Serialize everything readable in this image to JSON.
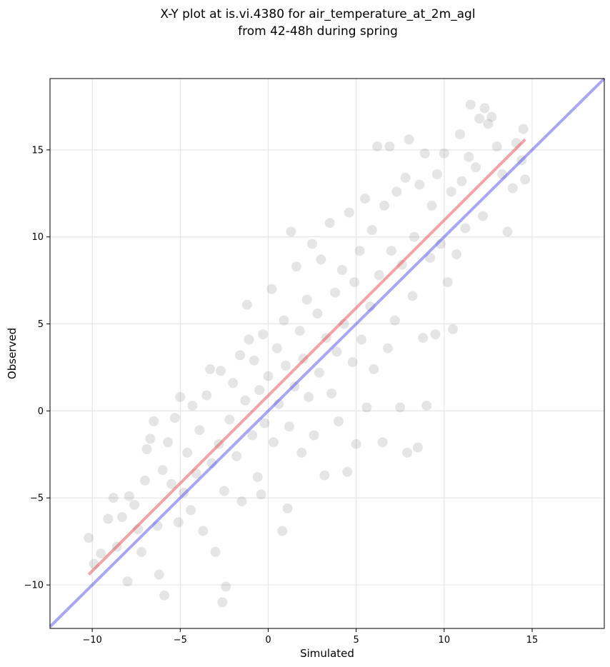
{
  "chart_data": {
    "type": "scatter",
    "title": [
      "X-Y plot at is.vi.4380 for air_temperature_at_2m_agl",
      "from 42-48h during spring"
    ],
    "xlabel": "Simulated",
    "ylabel": "Observed",
    "xlim": [
      -12.4,
      19.1
    ],
    "ylim": [
      -12.5,
      19.1
    ],
    "xticks": [
      -10,
      -5,
      0,
      5,
      10,
      15
    ],
    "yticks": [
      -10,
      -5,
      0,
      5,
      10,
      15
    ],
    "xtick_labels": [
      "−10",
      "−5",
      "0",
      "5",
      "10",
      "15"
    ],
    "ytick_labels": [
      "−10",
      "−5",
      "0",
      "5",
      "10",
      "15"
    ],
    "grid": true,
    "colors": {
      "points": "#000000",
      "fit_line": "#e8474e",
      "identity_line": "#3b3be8"
    },
    "identity_line": {
      "x": [
        -12.4,
        19.1
      ],
      "y": [
        -12.4,
        19.1
      ]
    },
    "fit_line": {
      "x": [
        -10.2,
        14.6
      ],
      "y": [
        -9.4,
        15.6
      ]
    },
    "point_generation_note_removed": true,
    "points": [
      [
        -10.2,
        -7.3
      ],
      [
        -9.9,
        -8.8
      ],
      [
        -9.5,
        -8.2
      ],
      [
        -9.1,
        -6.2
      ],
      [
        -8.8,
        -5.0
      ],
      [
        -8.6,
        -7.8
      ],
      [
        -8.3,
        -6.1
      ],
      [
        -8.0,
        -9.8
      ],
      [
        -7.9,
        -4.9
      ],
      [
        -7.6,
        -5.4
      ],
      [
        -7.4,
        -6.8
      ],
      [
        -7.2,
        -8.1
      ],
      [
        -7.0,
        -4.0
      ],
      [
        -6.9,
        -2.2
      ],
      [
        -6.7,
        -1.6
      ],
      [
        -6.5,
        -0.6
      ],
      [
        -6.3,
        -6.6
      ],
      [
        -6.2,
        -9.4
      ],
      [
        -6.0,
        -3.4
      ],
      [
        -5.9,
        -10.6
      ],
      [
        -5.7,
        -1.8
      ],
      [
        -5.5,
        -4.2
      ],
      [
        -5.3,
        -0.4
      ],
      [
        -5.1,
        -6.4
      ],
      [
        -5.0,
        0.8
      ],
      [
        -4.8,
        -4.7
      ],
      [
        -4.6,
        -2.4
      ],
      [
        -4.4,
        -5.7
      ],
      [
        -4.3,
        0.3
      ],
      [
        -4.1,
        -3.6
      ],
      [
        -3.9,
        -1.1
      ],
      [
        -3.7,
        -6.9
      ],
      [
        -3.5,
        0.9
      ],
      [
        -3.3,
        2.4
      ],
      [
        -3.2,
        -3.0
      ],
      [
        -3.0,
        -8.1
      ],
      [
        -2.8,
        -1.9
      ],
      [
        -2.7,
        2.3
      ],
      [
        -2.5,
        -4.6
      ],
      [
        -2.4,
        -10.1
      ],
      [
        -2.6,
        -11.0
      ],
      [
        -2.2,
        -0.5
      ],
      [
        -2.0,
        1.6
      ],
      [
        -1.8,
        -2.6
      ],
      [
        -1.6,
        3.2
      ],
      [
        -1.5,
        -5.2
      ],
      [
        -1.3,
        0.6
      ],
      [
        -1.1,
        4.1
      ],
      [
        -0.9,
        -1.4
      ],
      [
        -0.8,
        2.9
      ],
      [
        -1.2,
        6.1
      ],
      [
        -0.6,
        -3.8
      ],
      [
        -0.5,
        1.2
      ],
      [
        -0.3,
        4.4
      ],
      [
        -0.2,
        -0.7
      ],
      [
        0.0,
        2.0
      ],
      [
        0.2,
        7.0
      ],
      [
        0.3,
        -1.8
      ],
      [
        0.5,
        3.6
      ],
      [
        0.6,
        0.4
      ],
      [
        0.8,
        -6.9
      ],
      [
        0.9,
        5.2
      ],
      [
        1.0,
        2.6
      ],
      [
        1.2,
        -0.9
      ],
      [
        1.3,
        10.3
      ],
      [
        1.5,
        1.4
      ],
      [
        1.6,
        8.3
      ],
      [
        1.8,
        4.6
      ],
      [
        1.9,
        -2.4
      ],
      [
        2.0,
        3.0
      ],
      [
        2.2,
        6.4
      ],
      [
        2.3,
        0.8
      ],
      [
        2.5,
        9.6
      ],
      [
        2.6,
        -1.4
      ],
      [
        2.8,
        5.6
      ],
      [
        2.9,
        2.2
      ],
      [
        3.0,
        8.7
      ],
      [
        3.2,
        -3.7
      ],
      [
        3.3,
        4.2
      ],
      [
        3.5,
        10.8
      ],
      [
        3.6,
        1.0
      ],
      [
        3.8,
        6.8
      ],
      [
        3.9,
        3.4
      ],
      [
        4.0,
        -0.6
      ],
      [
        4.2,
        8.1
      ],
      [
        4.3,
        5.0
      ],
      [
        4.5,
        -3.5
      ],
      [
        4.6,
        11.4
      ],
      [
        4.8,
        2.8
      ],
      [
        4.9,
        7.4
      ],
      [
        5.0,
        -1.9
      ],
      [
        5.2,
        9.2
      ],
      [
        5.3,
        4.1
      ],
      [
        5.5,
        12.2
      ],
      [
        5.6,
        0.2
      ],
      [
        5.8,
        6.0
      ],
      [
        5.9,
        10.4
      ],
      [
        6.0,
        2.4
      ],
      [
        6.2,
        15.2
      ],
      [
        6.3,
        7.8
      ],
      [
        6.5,
        -1.8
      ],
      [
        6.6,
        11.8
      ],
      [
        6.8,
        3.6
      ],
      [
        6.9,
        15.2
      ],
      [
        7.0,
        9.2
      ],
      [
        7.2,
        5.2
      ],
      [
        7.3,
        12.6
      ],
      [
        7.5,
        0.2
      ],
      [
        7.6,
        8.4
      ],
      [
        7.8,
        13.4
      ],
      [
        7.9,
        -2.4
      ],
      [
        8.0,
        15.6
      ],
      [
        8.2,
        6.6
      ],
      [
        8.3,
        10.0
      ],
      [
        8.5,
        -2.1
      ],
      [
        8.6,
        13.0
      ],
      [
        8.8,
        4.2
      ],
      [
        8.9,
        14.8
      ],
      [
        9.0,
        0.3
      ],
      [
        9.2,
        8.8
      ],
      [
        9.3,
        11.8
      ],
      [
        9.5,
        4.4
      ],
      [
        9.6,
        13.6
      ],
      [
        9.8,
        9.6
      ],
      [
        10.0,
        14.8
      ],
      [
        10.2,
        7.4
      ],
      [
        10.4,
        12.6
      ],
      [
        10.5,
        4.7
      ],
      [
        10.7,
        9.0
      ],
      [
        10.9,
        15.9
      ],
      [
        11.0,
        13.2
      ],
      [
        11.2,
        10.5
      ],
      [
        11.4,
        14.6
      ],
      [
        11.5,
        17.6
      ],
      [
        11.8,
        14.0
      ],
      [
        12.0,
        16.8
      ],
      [
        12.2,
        11.2
      ],
      [
        12.3,
        17.4
      ],
      [
        12.5,
        16.5
      ],
      [
        12.7,
        16.9
      ],
      [
        13.0,
        15.2
      ],
      [
        13.3,
        13.6
      ],
      [
        13.6,
        10.3
      ],
      [
        13.9,
        12.8
      ],
      [
        14.1,
        15.4
      ],
      [
        14.5,
        16.2
      ],
      [
        14.6,
        13.3
      ],
      [
        14.4,
        14.4
      ],
      [
        1.1,
        -5.6
      ],
      [
        -0.4,
        -4.8
      ]
    ]
  }
}
